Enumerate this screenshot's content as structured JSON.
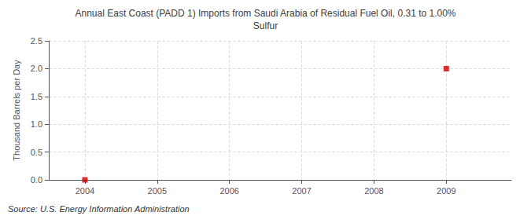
{
  "chart_data": {
    "type": "scatter",
    "title": "Annual East Coast (PADD 1) Imports from Saudi Arabia of Residual Fuel Oil, 0.31 to 1.00%\nSulfur",
    "ylabel": "Thousand Barrels per Day",
    "annotations": [
      "Source: U.S. Energy Information Administration"
    ],
    "x": [
      2004,
      2009
    ],
    "values": [
      0.0,
      2.0
    ],
    "color": "#cc0000",
    "marker": "square",
    "xlim": [
      2003.5,
      2009.9
    ],
    "xticks": [
      2004,
      2005,
      2006,
      2007,
      2008,
      2009
    ],
    "ylim": [
      0.0,
      2.5
    ],
    "yticks": [
      {
        "value": 0.0,
        "label": "0.0"
      },
      {
        "value": 0.5,
        "label": "0.5"
      },
      {
        "value": 1.0,
        "label": "1.0"
      },
      {
        "value": 1.5,
        "label": "1.5"
      },
      {
        "value": 2.0,
        "label": "2.0"
      },
      {
        "value": 2.5,
        "label": "2.5"
      }
    ],
    "grid": true
  }
}
